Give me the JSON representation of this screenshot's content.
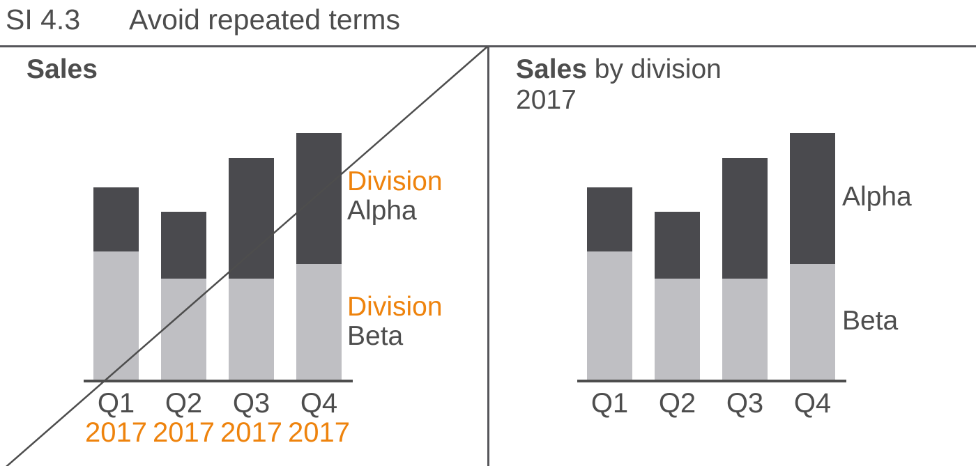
{
  "header": {
    "rule_id": "SI 4.3",
    "title": "Avoid repeated terms"
  },
  "colors": {
    "bar_dark": "#4A4A4E",
    "bar_light": "#BFBFC3",
    "highlight_orange": "#EE830D",
    "text_gray": "#4D4D4D",
    "line_gray": "#56565A"
  },
  "left_panel": {
    "title": "Sales",
    "label_alpha_line1": "Division",
    "label_alpha_line2": "Alpha",
    "label_beta_line1": "Division",
    "label_beta_line2": "Beta"
  },
  "right_panel": {
    "title_bold": "Sales",
    "title_rest": "by division",
    "subtitle": "2017",
    "label_alpha": "Alpha",
    "label_beta": "Beta"
  },
  "chart_data": [
    {
      "panel": "left",
      "type": "bar",
      "stacked": true,
      "title": "Sales",
      "categories": [
        "Q1",
        "Q2",
        "Q3",
        "Q4"
      ],
      "category_year_labels": [
        "2017",
        "2017",
        "2017",
        "2017"
      ],
      "series": [
        {
          "name": "Division Beta",
          "position": "bottom",
          "color": "#BFBFC3",
          "values": [
            52,
            41,
            41,
            47
          ]
        },
        {
          "name": "Division Alpha",
          "position": "top",
          "color": "#4A4A4E",
          "values": [
            26,
            27,
            49,
            53
          ]
        }
      ],
      "value_axis_visible": false,
      "ylim": [
        0,
        100
      ],
      "grid": false,
      "legend": "direct labels right of last bar",
      "struck_through": true
    },
    {
      "panel": "right",
      "type": "bar",
      "stacked": true,
      "title": "Sales by division",
      "subtitle": "2017",
      "categories": [
        "Q1",
        "Q2",
        "Q3",
        "Q4"
      ],
      "series": [
        {
          "name": "Beta",
          "position": "bottom",
          "color": "#BFBFC3",
          "values": [
            52,
            41,
            41,
            47
          ]
        },
        {
          "name": "Alpha",
          "position": "top",
          "color": "#4A4A4E",
          "values": [
            26,
            27,
            49,
            53
          ]
        }
      ],
      "value_axis_visible": false,
      "ylim": [
        0,
        100
      ],
      "grid": false,
      "legend": "direct labels right of last bar",
      "struck_through": false
    }
  ]
}
